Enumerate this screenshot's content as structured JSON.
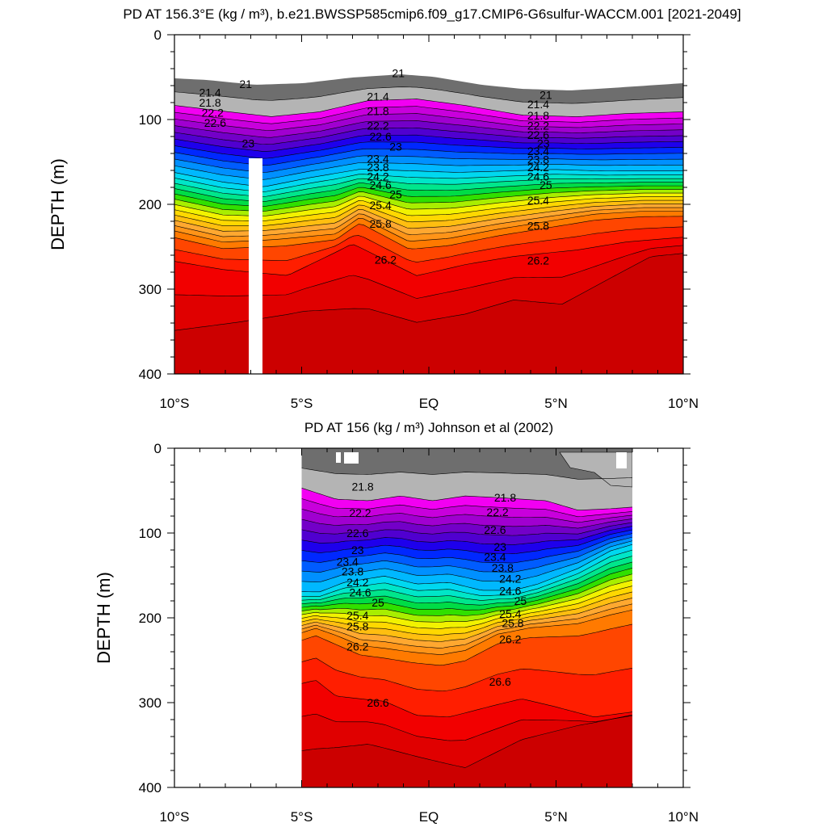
{
  "chart_data": [
    {
      "type": "filled-contour",
      "title": "PD AT 156.3°E (kg / m³), b.e21.BWSSP585cmip6.f09_g17.CMIP6-G6sulfur-WACCM.001 [2021-2049]",
      "ylabel": "DEPTH (m)",
      "xlabel": "",
      "x_ticks": [
        "10°S",
        "5°S",
        "EQ",
        "5°N",
        "10°N"
      ],
      "y_ticks": [
        "0",
        "100",
        "200",
        "300",
        "400"
      ],
      "xlim": [
        -10,
        10
      ],
      "ylim": [
        400,
        0
      ],
      "contour_interval": 0.2,
      "contour_labels": [
        {
          "lat": -7.2,
          "depth": 58,
          "text": "21"
        },
        {
          "lat": -8.6,
          "depth": 68,
          "text": "21.4"
        },
        {
          "lat": -8.6,
          "depth": 80,
          "text": "21.8"
        },
        {
          "lat": -8.5,
          "depth": 92,
          "text": "22.2"
        },
        {
          "lat": -8.4,
          "depth": 104,
          "text": "22.6"
        },
        {
          "lat": -7.1,
          "depth": 128,
          "text": "23"
        },
        {
          "lat": -1.2,
          "depth": 45,
          "text": "21"
        },
        {
          "lat": -2.0,
          "depth": 73,
          "text": "21.4"
        },
        {
          "lat": -2.0,
          "depth": 90,
          "text": "21.8"
        },
        {
          "lat": -2.0,
          "depth": 107,
          "text": "22.2"
        },
        {
          "lat": -1.9,
          "depth": 120,
          "text": "22.6"
        },
        {
          "lat": -1.3,
          "depth": 132,
          "text": "23"
        },
        {
          "lat": -2.0,
          "depth": 146,
          "text": "23.4"
        },
        {
          "lat": -2.0,
          "depth": 156,
          "text": "23.8"
        },
        {
          "lat": -2.0,
          "depth": 167,
          "text": "24.2"
        },
        {
          "lat": -1.9,
          "depth": 177,
          "text": "24.6"
        },
        {
          "lat": -1.3,
          "depth": 188,
          "text": "25"
        },
        {
          "lat": -1.9,
          "depth": 201,
          "text": "25.4"
        },
        {
          "lat": -1.9,
          "depth": 223,
          "text": "25.8"
        },
        {
          "lat": -1.7,
          "depth": 265,
          "text": "26.2"
        },
        {
          "lat": 4.6,
          "depth": 71,
          "text": "21"
        },
        {
          "lat": 4.3,
          "depth": 82,
          "text": "21.4"
        },
        {
          "lat": 4.3,
          "depth": 95,
          "text": "21.8"
        },
        {
          "lat": 4.3,
          "depth": 107,
          "text": "22.2"
        },
        {
          "lat": 4.3,
          "depth": 118,
          "text": "22.6"
        },
        {
          "lat": 4.5,
          "depth": 128,
          "text": "23"
        },
        {
          "lat": 4.3,
          "depth": 137,
          "text": "23.4"
        },
        {
          "lat": 4.3,
          "depth": 147,
          "text": "23.8"
        },
        {
          "lat": 4.3,
          "depth": 156,
          "text": "24.2"
        },
        {
          "lat": 4.3,
          "depth": 167,
          "text": "24.6"
        },
        {
          "lat": 4.6,
          "depth": 177,
          "text": "25"
        },
        {
          "lat": 4.3,
          "depth": 195,
          "text": "25.4"
        },
        {
          "lat": 4.3,
          "depth": 225,
          "text": "25.8"
        },
        {
          "lat": 4.3,
          "depth": 266,
          "text": "26.2"
        }
      ],
      "fill_colors": [
        "#6e6e6e",
        "#b4b4b4",
        "#f200f2",
        "#c800dc",
        "#a000d0",
        "#7300c8",
        "#5000d0",
        "#1e00ec",
        "#0028ff",
        "#005cff",
        "#0090ff",
        "#00b8ff",
        "#00d8f0",
        "#00e6c8",
        "#00e68c",
        "#00dc46",
        "#30e000",
        "#a8ee00",
        "#f2f200",
        "#ffd800",
        "#ffbe10",
        "#ffa830",
        "#ff9418",
        "#ff7a00",
        "#ff4600",
        "#ff1e00",
        "#f20000",
        "#e00000",
        "#cc0000"
      ]
    },
    {
      "type": "filled-contour",
      "title": "PD AT 156 (kg / m³) Johnson et al (2002)",
      "ylabel": "DEPTH (m)",
      "xlabel": "",
      "x_ticks": [
        "10°S",
        "5°S",
        "EQ",
        "5°N",
        "10°N"
      ],
      "y_ticks": [
        "0",
        "100",
        "200",
        "300",
        "400"
      ],
      "xlim": [
        -10,
        10
      ],
      "ylim": [
        400,
        0
      ],
      "data_lat_range": [
        -5,
        8
      ],
      "contour_interval": 0.2,
      "contour_labels": [
        {
          "lat": -2.6,
          "depth": 45,
          "text": "21.8"
        },
        {
          "lat": -2.7,
          "depth": 76,
          "text": "22.2"
        },
        {
          "lat": -2.8,
          "depth": 100,
          "text": "22.6"
        },
        {
          "lat": -2.8,
          "depth": 120,
          "text": "23"
        },
        {
          "lat": -3.2,
          "depth": 134,
          "text": "23.4"
        },
        {
          "lat": -3.0,
          "depth": 145,
          "text": "23.8"
        },
        {
          "lat": -2.8,
          "depth": 158,
          "text": "24.2"
        },
        {
          "lat": -2.7,
          "depth": 170,
          "text": "24.6"
        },
        {
          "lat": -2.0,
          "depth": 182,
          "text": "25"
        },
        {
          "lat": -2.8,
          "depth": 197,
          "text": "25.4"
        },
        {
          "lat": -2.8,
          "depth": 210,
          "text": "25.8"
        },
        {
          "lat": -2.8,
          "depth": 234,
          "text": "26.2"
        },
        {
          "lat": -2.0,
          "depth": 300,
          "text": "26.6"
        },
        {
          "lat": 3.0,
          "depth": 58,
          "text": "21.8"
        },
        {
          "lat": 2.7,
          "depth": 75,
          "text": "22.2"
        },
        {
          "lat": 2.6,
          "depth": 96,
          "text": "22.6"
        },
        {
          "lat": 2.8,
          "depth": 116,
          "text": "23"
        },
        {
          "lat": 2.6,
          "depth": 128,
          "text": "23.4"
        },
        {
          "lat": 2.9,
          "depth": 141,
          "text": "23.8"
        },
        {
          "lat": 3.2,
          "depth": 154,
          "text": "24.2"
        },
        {
          "lat": 3.2,
          "depth": 168,
          "text": "24.6"
        },
        {
          "lat": 3.6,
          "depth": 180,
          "text": "25"
        },
        {
          "lat": 3.2,
          "depth": 195,
          "text": "25.4"
        },
        {
          "lat": 3.3,
          "depth": 206,
          "text": "25.8"
        },
        {
          "lat": 3.2,
          "depth": 225,
          "text": "26.2"
        },
        {
          "lat": 2.8,
          "depth": 275,
          "text": "26.6"
        }
      ]
    }
  ]
}
